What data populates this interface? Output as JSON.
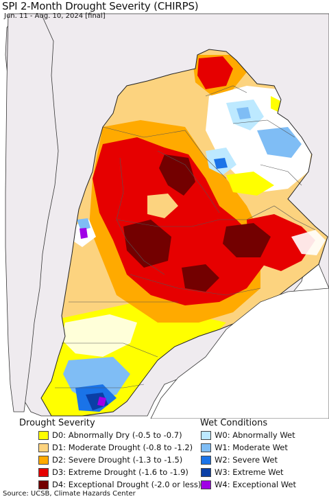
{
  "title": "SPI 2-Month Drought Severity (CHIRPS)",
  "subtitle": "Jun. 11 - Aug. 10, 2024 [final]",
  "legend": {
    "drought_heading": "Drought Severity",
    "wet_heading": "Wet Conditions",
    "drought": [
      {
        "label": "D0: Abnormally Dry (-0.5 to -0.7)",
        "color": "#ffff00"
      },
      {
        "label": "D1: Moderate Drought (-0.8 to -1.2)",
        "color": "#fcd37f"
      },
      {
        "label": "D2: Severe Drought (-1.3 to -1.5)",
        "color": "#ffaa00"
      },
      {
        "label": "D3: Extreme Drought (-1.6 to -1.9)",
        "color": "#e60000"
      },
      {
        "label": "D4: Exceptional Drought (-2.0 or less)",
        "color": "#730000"
      }
    ],
    "wet": [
      {
        "label": "W0: Abnormally Wet",
        "color": "#bde9ff"
      },
      {
        "label": "W1: Moderate Wet",
        "color": "#7fbdf5"
      },
      {
        "label": "W2: Severe Wet",
        "color": "#1a73e8"
      },
      {
        "label": "W3: Extreme Wet",
        "color": "#0a3fa6"
      },
      {
        "label": "W4: Exceptional Wet",
        "color": "#a000e6"
      }
    ]
  },
  "source": "Source: UCSB, Climate Hazards Center",
  "colors": {
    "ocean": "#ffffff",
    "land_background": "#efebef",
    "no_data": "#ffffff",
    "borders": "#555555"
  }
}
